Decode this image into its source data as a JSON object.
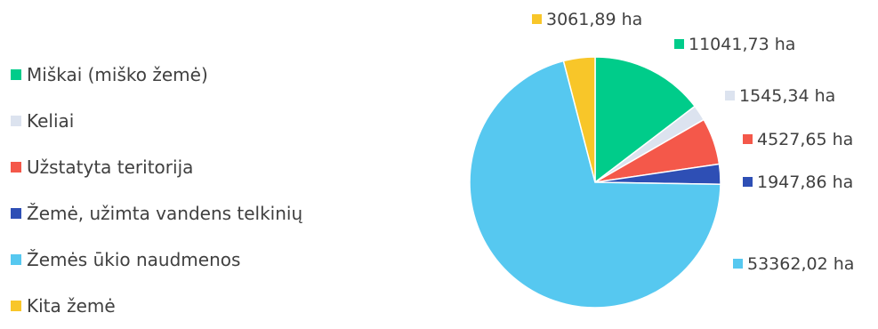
{
  "chart_data": {
    "type": "pie",
    "title": "",
    "unit": "ha",
    "start_angle_deg": 0,
    "direction": "clockwise",
    "legend_position": "left",
    "slices": [
      {
        "name": "Miškai (miško žemė)",
        "value": 11041.73,
        "label": "11041,73 ha",
        "color": "#00cc8a"
      },
      {
        "name": "Keliai",
        "value": 1545.34,
        "label": "1545,34 ha",
        "color": "#dce3ef"
      },
      {
        "name": "Užstatyta teritorija",
        "value": 4527.65,
        "label": "4527,65 ha",
        "color": "#f4584a"
      },
      {
        "name": "Žemė, užimta vandens telkinių",
        "value": 1947.86,
        "label": "1947,86 ha",
        "color": "#2e4fb5"
      },
      {
        "name": "Žemės ūkio naudmenos",
        "value": 53362.02,
        "label": "53362,02 ha",
        "color": "#56c8f0"
      },
      {
        "name": "Kita žemė",
        "value": 3061.89,
        "label": "3061,89 ha",
        "color": "#f8c629"
      }
    ]
  }
}
